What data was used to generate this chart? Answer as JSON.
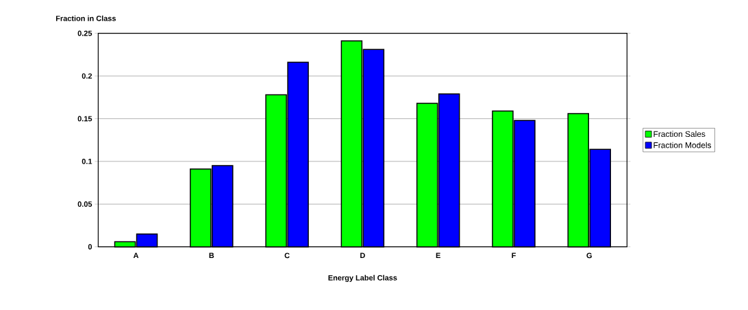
{
  "chart_data": {
    "type": "bar",
    "ylabel": "Fraction in Class",
    "xlabel": "Energy Label Class",
    "categories": [
      "A",
      "B",
      "C",
      "D",
      "E",
      "F",
      "G"
    ],
    "series": [
      {
        "name": "Fraction Sales",
        "color": "#00ff00",
        "values": [
          0.006,
          0.091,
          0.178,
          0.241,
          0.168,
          0.159,
          0.156
        ]
      },
      {
        "name": "Fraction Models",
        "color": "#0000ff",
        "values": [
          0.015,
          0.095,
          0.216,
          0.231,
          0.179,
          0.148,
          0.114
        ]
      }
    ],
    "ylim": [
      0,
      0.25
    ],
    "yticks": [
      0,
      0.05,
      0.1,
      0.15,
      0.2,
      0.25
    ],
    "grid": "y",
    "legend": "right"
  }
}
